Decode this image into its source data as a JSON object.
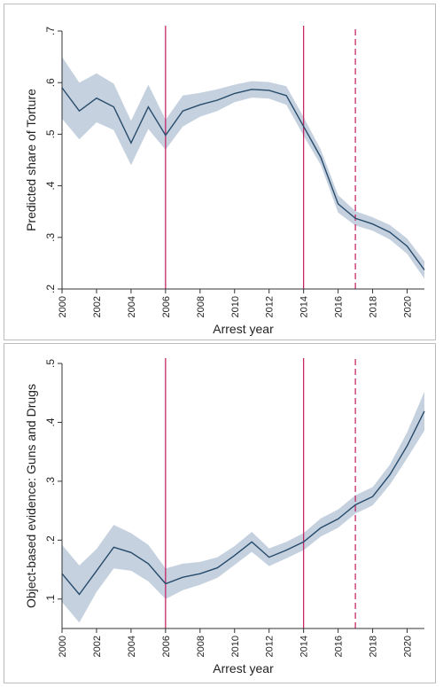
{
  "colors": {
    "line": "#274b6b",
    "ci_band": "#c5d1df",
    "vline": "#c2185b",
    "axis": "#333333"
  },
  "chart_data": [
    {
      "type": "line",
      "title": "",
      "xlabel": "Arrest year",
      "ylabel": "Predicted share of Torture",
      "xlim": [
        2000,
        2021
      ],
      "ylim": [
        0.2,
        0.7
      ],
      "xticks": [
        "2000",
        "2002",
        "2004",
        "2006",
        "2008",
        "2010",
        "2012",
        "2014",
        "2016",
        "2018",
        "2020"
      ],
      "yticks": [
        ".2",
        ".3",
        ".4",
        ".5",
        ".6",
        ".7"
      ],
      "grid": false,
      "vlines": [
        {
          "x": 2006,
          "style": "solid"
        },
        {
          "x": 2014,
          "style": "solid"
        },
        {
          "x": 2017,
          "style": "dashed"
        }
      ],
      "series": [
        {
          "x": [
            2000,
            2001,
            2002,
            2003,
            2004,
            2005,
            2006,
            2007,
            2008,
            2009,
            2010,
            2011,
            2012,
            2013,
            2014,
            2015,
            2016,
            2017,
            2018,
            2019,
            2020,
            2021
          ],
          "values": [
            0.59,
            0.545,
            0.57,
            0.553,
            0.483,
            0.553,
            0.498,
            0.545,
            0.557,
            0.566,
            0.579,
            0.587,
            0.585,
            0.575,
            0.515,
            0.455,
            0.365,
            0.337,
            0.326,
            0.31,
            0.283,
            0.237
          ],
          "ci_lower": [
            0.53,
            0.49,
            0.523,
            0.508,
            0.44,
            0.51,
            0.47,
            0.515,
            0.534,
            0.545,
            0.562,
            0.571,
            0.569,
            0.557,
            0.497,
            0.44,
            0.348,
            0.323,
            0.313,
            0.296,
            0.268,
            0.22
          ],
          "ci_upper": [
            0.65,
            0.6,
            0.618,
            0.598,
            0.526,
            0.596,
            0.528,
            0.575,
            0.58,
            0.587,
            0.596,
            0.603,
            0.601,
            0.593,
            0.533,
            0.47,
            0.382,
            0.351,
            0.339,
            0.324,
            0.298,
            0.254
          ]
        }
      ]
    },
    {
      "type": "line",
      "title": "",
      "xlabel": "Arrest year",
      "ylabel": "Object-based evidence: Guns and Drugs",
      "xlim": [
        2000,
        2021
      ],
      "ylim": [
        0.05,
        0.5
      ],
      "xticks": [
        "2000",
        "2002",
        "2004",
        "2006",
        "2008",
        "2010",
        "2012",
        "2014",
        "2016",
        "2018",
        "2020"
      ],
      "yticks": [
        ".1",
        ".2",
        ".3",
        ".4",
        ".5"
      ],
      "grid": false,
      "vlines": [
        {
          "x": 2006,
          "style": "solid"
        },
        {
          "x": 2014,
          "style": "solid"
        },
        {
          "x": 2017,
          "style": "dashed"
        }
      ],
      "series": [
        {
          "x": [
            2000,
            2001,
            2002,
            2003,
            2004,
            2005,
            2006,
            2007,
            2008,
            2009,
            2010,
            2011,
            2012,
            2013,
            2014,
            2015,
            2016,
            2017,
            2018,
            2019,
            2020,
            2021
          ],
          "values": [
            0.143,
            0.108,
            0.148,
            0.188,
            0.179,
            0.16,
            0.126,
            0.137,
            0.143,
            0.153,
            0.174,
            0.197,
            0.171,
            0.183,
            0.197,
            0.221,
            0.236,
            0.26,
            0.274,
            0.311,
            0.36,
            0.419
          ],
          "ci_lower": [
            0.095,
            0.06,
            0.112,
            0.152,
            0.148,
            0.13,
            0.1,
            0.115,
            0.124,
            0.136,
            0.158,
            0.18,
            0.156,
            0.169,
            0.183,
            0.206,
            0.221,
            0.245,
            0.259,
            0.294,
            0.339,
            0.386
          ],
          "ci_upper": [
            0.192,
            0.157,
            0.185,
            0.226,
            0.212,
            0.192,
            0.152,
            0.16,
            0.163,
            0.171,
            0.19,
            0.214,
            0.186,
            0.197,
            0.212,
            0.237,
            0.252,
            0.276,
            0.29,
            0.328,
            0.383,
            0.452
          ]
        }
      ]
    }
  ]
}
